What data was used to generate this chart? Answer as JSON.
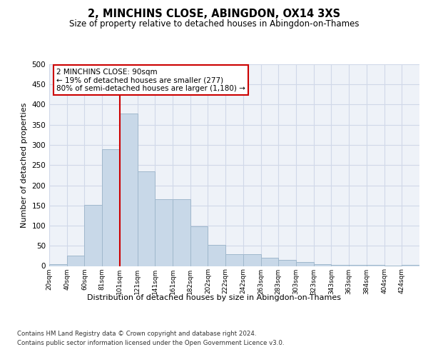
{
  "title": "2, MINCHINS CLOSE, ABINGDON, OX14 3XS",
  "subtitle": "Size of property relative to detached houses in Abingdon-on-Thames",
  "xlabel": "Distribution of detached houses by size in Abingdon-on-Thames",
  "ylabel": "Number of detached properties",
  "footnote1": "Contains HM Land Registry data © Crown copyright and database right 2024.",
  "footnote2": "Contains public sector information licensed under the Open Government Licence v3.0.",
  "bar_labels": [
    "20sqm",
    "40sqm",
    "60sqm",
    "81sqm",
    "101sqm",
    "121sqm",
    "141sqm",
    "161sqm",
    "182sqm",
    "202sqm",
    "222sqm",
    "242sqm",
    "263sqm",
    "283sqm",
    "303sqm",
    "323sqm",
    "343sqm",
    "363sqm",
    "384sqm",
    "404sqm",
    "424sqm"
  ],
  "bar_values": [
    5,
    26,
    152,
    290,
    378,
    235,
    165,
    165,
    99,
    52,
    29,
    29,
    20,
    15,
    9,
    4,
    2,
    3,
    2,
    1,
    3
  ],
  "bar_color": "#c8d8e8",
  "bar_edge_color": "#a0b8cc",
  "grid_color": "#d0d8e8",
  "background_color": "#eef2f8",
  "annotation_line1": "2 MINCHINS CLOSE: 90sqm",
  "annotation_line2": "← 19% of detached houses are smaller (277)",
  "annotation_line3": "80% of semi-detached houses are larger (1,180) →",
  "annotation_box_color": "#ffffff",
  "annotation_border_color": "#cc0000",
  "vline_color": "#cc0000",
  "ylim": [
    0,
    500
  ],
  "yticks": [
    0,
    50,
    100,
    150,
    200,
    250,
    300,
    350,
    400,
    450,
    500
  ],
  "n_bars": 21,
  "bar_width": 1.0,
  "vline_bar_index": 3.5
}
